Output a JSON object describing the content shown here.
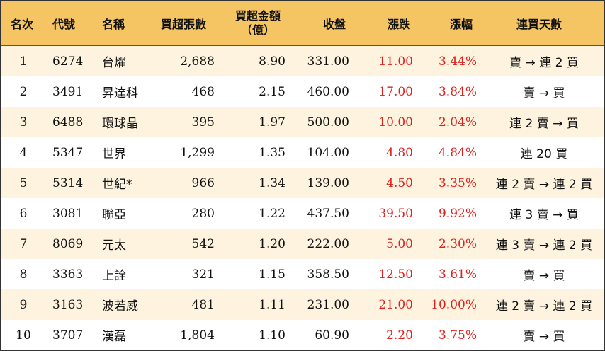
{
  "headers": {
    "rank": "名次",
    "code": "代號",
    "name": "名稱",
    "net_lots": "買超張數",
    "amount_line1": "買超金額",
    "amount_line2": "（億）",
    "close": "收盤",
    "change": "漲跌",
    "change_pct": "漲幅",
    "streak": "連買天數"
  },
  "rows": [
    {
      "rank": "1",
      "code": "6274",
      "name": "台燿",
      "net_lots": "2,688",
      "amount": "8.90",
      "close": "331.00",
      "change": "11.00",
      "change_pct": "3.44%",
      "streak": "賣 → 連 2 買"
    },
    {
      "rank": "2",
      "code": "3491",
      "name": "昇達科",
      "net_lots": "468",
      "amount": "2.15",
      "close": "460.00",
      "change": "17.00",
      "change_pct": "3.84%",
      "streak": "賣 → 買"
    },
    {
      "rank": "3",
      "code": "6488",
      "name": "環球晶",
      "net_lots": "395",
      "amount": "1.97",
      "close": "500.00",
      "change": "10.00",
      "change_pct": "2.04%",
      "streak": "連 2 賣 → 買"
    },
    {
      "rank": "4",
      "code": "5347",
      "name": "世界",
      "net_lots": "1,299",
      "amount": "1.35",
      "close": "104.00",
      "change": "4.80",
      "change_pct": "4.84%",
      "streak": "連 20 買"
    },
    {
      "rank": "5",
      "code": "5314",
      "name": "世紀*",
      "net_lots": "966",
      "amount": "1.34",
      "close": "139.00",
      "change": "4.50",
      "change_pct": "3.35%",
      "streak": "連 2 賣 → 連 2 買"
    },
    {
      "rank": "6",
      "code": "3081",
      "name": "聯亞",
      "net_lots": "280",
      "amount": "1.22",
      "close": "437.50",
      "change": "39.50",
      "change_pct": "9.92%",
      "streak": "連 3 賣 → 買"
    },
    {
      "rank": "7",
      "code": "8069",
      "name": "元太",
      "net_lots": "542",
      "amount": "1.20",
      "close": "222.00",
      "change": "5.00",
      "change_pct": "2.30%",
      "streak": "連 3 賣 → 連 2 買"
    },
    {
      "rank": "8",
      "code": "3363",
      "name": "上詮",
      "net_lots": "321",
      "amount": "1.15",
      "close": "358.50",
      "change": "12.50",
      "change_pct": "3.61%",
      "streak": "賣 → 買"
    },
    {
      "rank": "9",
      "code": "3163",
      "name": "波若威",
      "net_lots": "481",
      "amount": "1.11",
      "close": "231.00",
      "change": "21.00",
      "change_pct": "10.00%",
      "streak": "連 2 賣 → 連 2 買"
    },
    {
      "rank": "10",
      "code": "3707",
      "name": "漢磊",
      "net_lots": "1,804",
      "amount": "1.10",
      "close": "60.90",
      "change": "2.20",
      "change_pct": "3.75%",
      "streak": "賣 → 買"
    }
  ],
  "colors": {
    "header_bg": "#f5c563",
    "stripe_bg": "#fdf3df",
    "up_red": "#e0201b"
  }
}
